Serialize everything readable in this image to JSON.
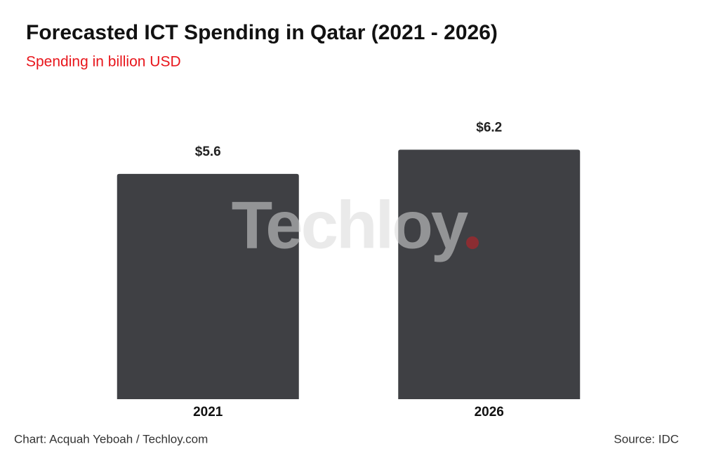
{
  "chart_data": {
    "type": "bar",
    "title": "Forecasted ICT Spending in Qatar (2021 - 2026)",
    "subtitle": "Spending in billion USD",
    "categories": [
      "2021",
      "2026"
    ],
    "values": [
      5.6,
      6.2
    ],
    "value_labels": [
      "$5.6",
      "$6.2"
    ],
    "color": "#3f4044",
    "credit": "Chart: Acquah Yeboah / Techloy.com",
    "source": "Source: IDC",
    "watermark": "Techloy"
  }
}
